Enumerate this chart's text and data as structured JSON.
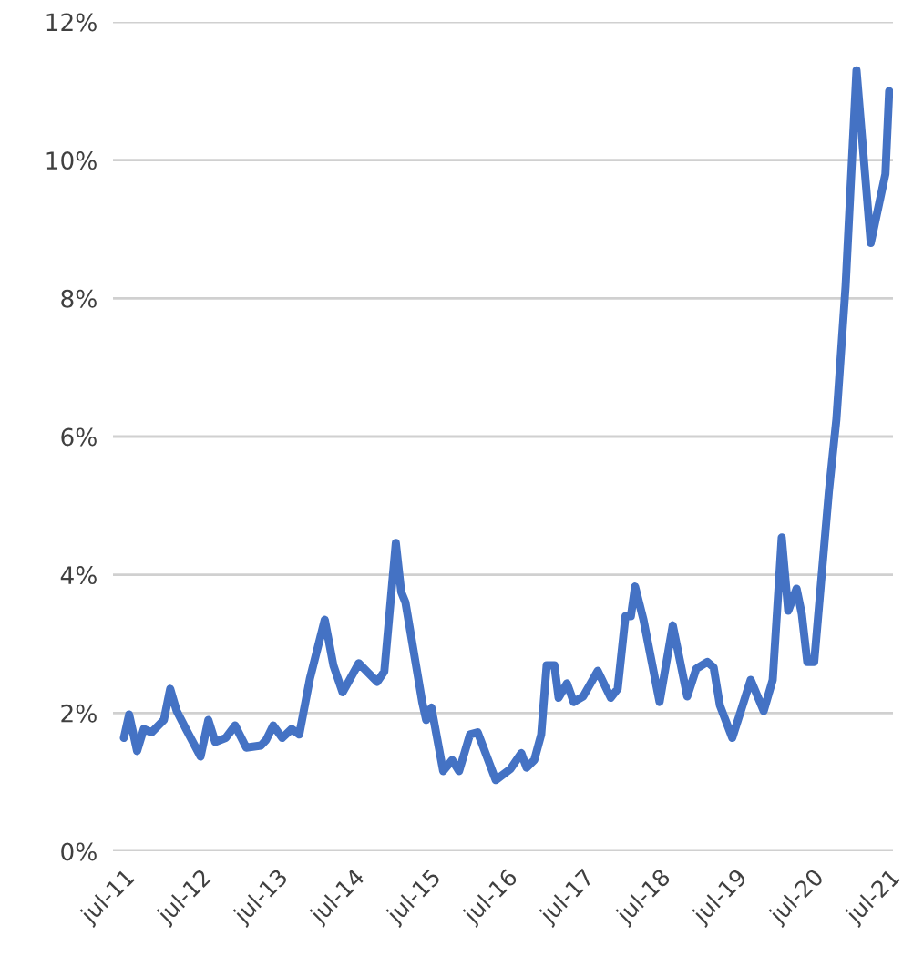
{
  "chart_data": {
    "type": "line",
    "x": [
      "2011-07-01",
      "2011-07-26",
      "2011-09-02",
      "2011-10-04",
      "2011-11-10",
      "2012-01-08",
      "2012-02-07",
      "2012-03-09",
      "2012-04-22",
      "2012-07-01",
      "2012-08-07",
      "2012-09-09",
      "2012-10-29",
      "2012-12-13",
      "2013-02-04",
      "2013-04-15",
      "2013-05-10",
      "2013-06-13",
      "2013-07-26",
      "2013-09-09",
      "2013-10-15",
      "2013-12-05",
      "2014-02-14",
      "2014-03-27",
      "2014-05-10",
      "2014-07-26",
      "2014-10-22",
      "2014-11-25",
      "2015-01-19",
      "2015-02-14",
      "2015-03-06",
      "2015-05-25",
      "2015-06-13",
      "2015-07-08",
      "2015-09-02",
      "2015-10-15",
      "2015-11-17",
      "2016-01-08",
      "2016-02-14",
      "2016-05-10",
      "2016-07-19",
      "2016-09-09",
      "2016-10-04",
      "2016-11-10",
      "2016-12-13",
      "2017-01-08",
      "2017-02-14",
      "2017-03-06",
      "2017-04-15",
      "2017-05-17",
      "2017-07-01",
      "2017-09-09",
      "2017-11-10",
      "2017-12-13",
      "2018-01-19",
      "2018-02-14",
      "2018-03-06",
      "2018-04-15",
      "2018-07-01",
      "2018-09-02",
      "2018-11-10",
      "2018-12-23",
      "2019-02-14",
      "2019-03-16",
      "2019-04-15",
      "2019-06-13",
      "2019-09-09",
      "2019-11-10",
      "2019-12-23",
      "2020-02-04",
      "2020-03-06",
      "2020-04-15",
      "2020-05-10",
      "2020-06-05",
      "2020-07-08",
      "2020-09-16",
      "2020-10-22",
      "2020-12-05",
      "2021-01-26",
      "2021-04-04",
      "2021-06-13",
      "2021-07-01"
    ],
    "series": [
      {
        "color": "#4472c4",
        "values": [
          1.64,
          1.98,
          1.45,
          1.77,
          1.72,
          1.9,
          2.35,
          2.03,
          1.77,
          1.37,
          1.9,
          1.58,
          1.64,
          1.82,
          1.5,
          1.53,
          1.61,
          1.82,
          1.64,
          1.77,
          1.69,
          2.5,
          3.35,
          2.69,
          2.3,
          2.72,
          2.45,
          2.6,
          4.46,
          3.75,
          3.6,
          2.16,
          1.9,
          2.08,
          1.16,
          1.32,
          1.16,
          1.69,
          1.72,
          1.03,
          1.19,
          1.42,
          1.21,
          1.32,
          1.69,
          2.69,
          2.69,
          2.22,
          2.43,
          2.16,
          2.24,
          2.61,
          2.22,
          2.35,
          3.4,
          3.4,
          3.83,
          3.35,
          2.16,
          3.27,
          2.24,
          2.64,
          2.74,
          2.66,
          2.11,
          1.64,
          2.48,
          2.03,
          2.48,
          4.54,
          3.48,
          3.8,
          3.43,
          2.74,
          2.74,
          5.2,
          6.25,
          8.18,
          11.3,
          8.8,
          9.8,
          11.0
        ]
      }
    ],
    "xlim": [
      "2011-05-10",
      "2021-07-19"
    ],
    "xticks": [
      {
        "value": "2011-07-01",
        "label": "jul-11"
      },
      {
        "value": "2012-07-01",
        "label": "jul-12"
      },
      {
        "value": "2013-07-01",
        "label": "jul-13"
      },
      {
        "value": "2014-07-01",
        "label": "jul-14"
      },
      {
        "value": "2015-07-01",
        "label": "jul-15"
      },
      {
        "value": "2016-07-01",
        "label": "jul-16"
      },
      {
        "value": "2017-07-01",
        "label": "jul-17"
      },
      {
        "value": "2018-07-01",
        "label": "jul-18"
      },
      {
        "value": "2019-07-01",
        "label": "jul-19"
      },
      {
        "value": "2020-07-01",
        "label": "jul-20"
      },
      {
        "value": "2021-07-01",
        "label": "jul-21"
      }
    ],
    "ylim": [
      0,
      12
    ],
    "yticks": [
      {
        "value": 0,
        "label": "0%"
      },
      {
        "value": 2,
        "label": "2%"
      },
      {
        "value": 4,
        "label": "4%"
      },
      {
        "value": 6,
        "label": "6%"
      },
      {
        "value": 8,
        "label": "8%"
      },
      {
        "value": 10,
        "label": "10%"
      },
      {
        "value": 12,
        "label": "12%"
      }
    ],
    "grid": "y",
    "line_style": "solid"
  }
}
